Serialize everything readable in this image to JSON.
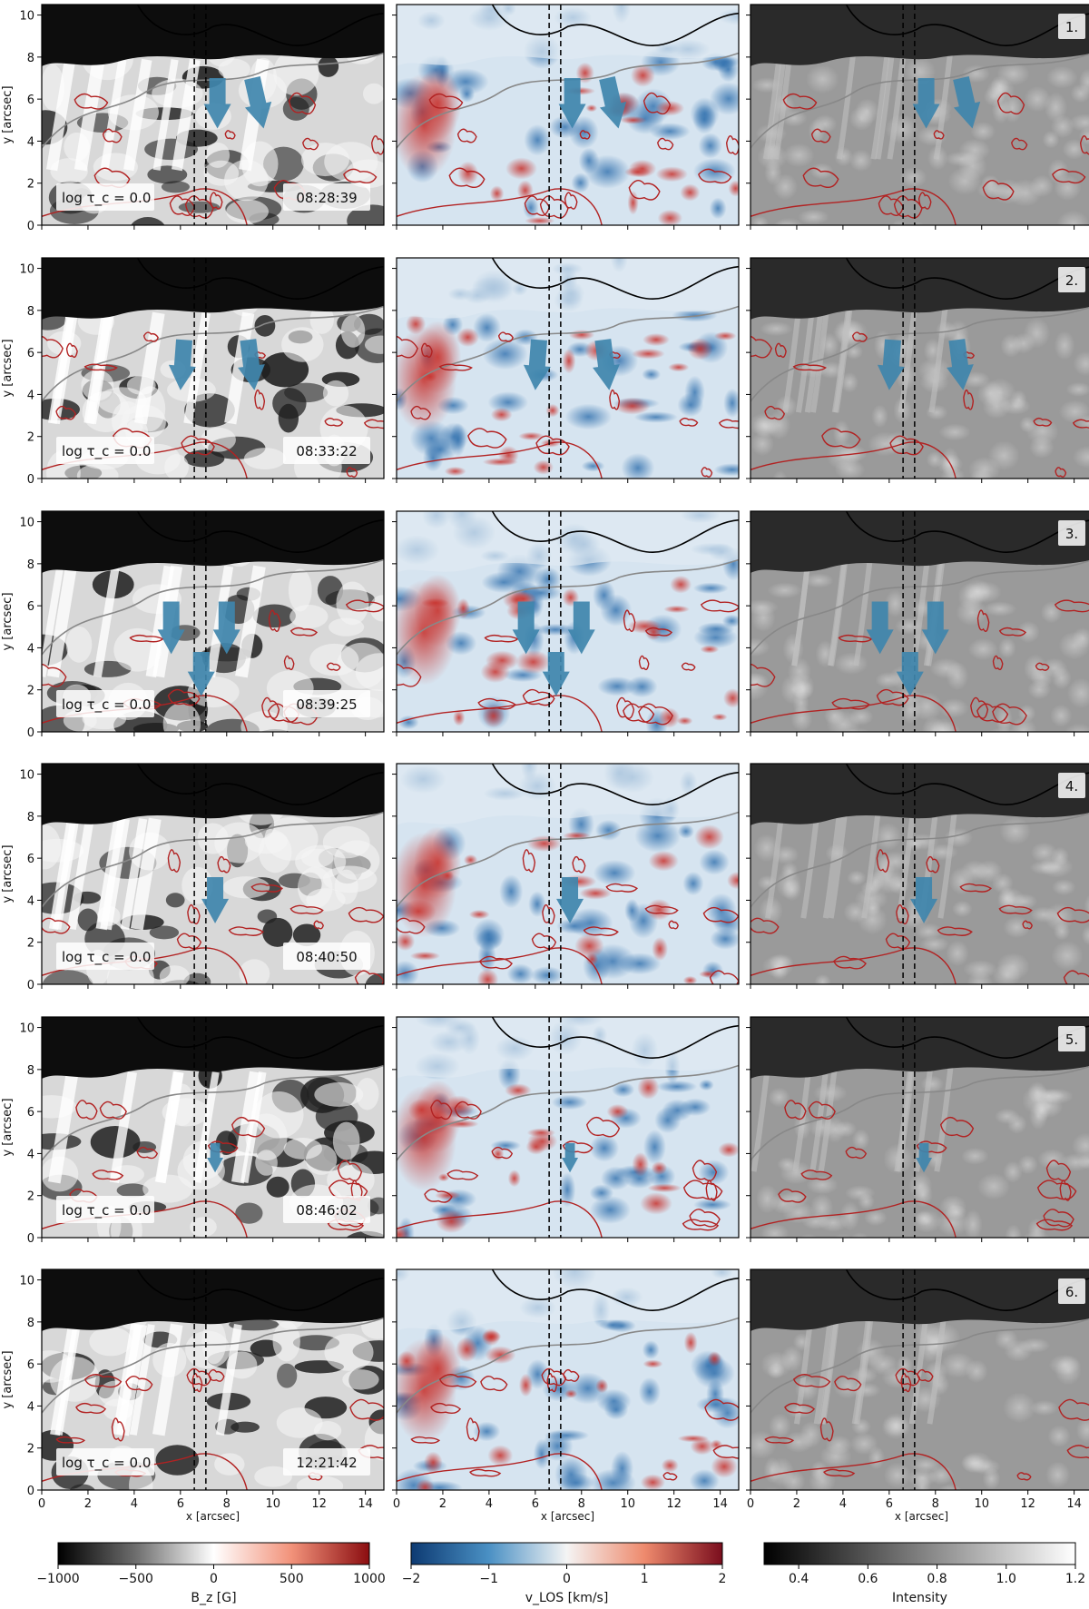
{
  "figure": {
    "rows": [
      {
        "index": "1.",
        "time": "08:28:39",
        "arrows": [
          {
            "x": 7.6,
            "y0": 7.0,
            "y1": 4.6,
            "w": 1.0
          },
          {
            "x": 9.6,
            "y0": 7.0,
            "y1": 4.6,
            "w": 1.0,
            "tilt": -0.9
          }
        ]
      },
      {
        "index": "2.",
        "time": "08:33:22",
        "arrows": [
          {
            "x": 6.0,
            "y0": 6.6,
            "y1": 4.2,
            "w": 1.0,
            "tilt": 0.3
          },
          {
            "x": 9.2,
            "y0": 6.6,
            "y1": 4.2,
            "w": 1.0,
            "tilt": -0.5
          }
        ]
      },
      {
        "index": "3.",
        "time": "08:39:25",
        "arrows": [
          {
            "x": 5.6,
            "y0": 6.2,
            "y1": 3.7,
            "w": 1.0
          },
          {
            "x": 8.0,
            "y0": 6.2,
            "y1": 3.7,
            "w": 1.0
          },
          {
            "x": 6.9,
            "y0": 3.8,
            "y1": 1.7,
            "w": 1.0
          }
        ]
      },
      {
        "index": "4.",
        "time": "08:40:50",
        "arrows": [
          {
            "x": 7.5,
            "y0": 5.1,
            "y1": 2.9,
            "w": 1.0
          }
        ]
      },
      {
        "index": "5.",
        "time": "08:46:02",
        "arrows": [
          {
            "x": 7.5,
            "y0": 4.5,
            "y1": 3.1,
            "w": 0.6
          }
        ]
      },
      {
        "index": "6.",
        "time": "12:21:42",
        "arrows": []
      }
    ],
    "height_label": "log τ_c = 0.0",
    "y_axis_label": "y [arcsec]",
    "x_axis_label": "x [arcsec]",
    "dashed_lines_x": [
      6.6,
      7.1
    ],
    "x_ticks": [
      "0",
      "2",
      "4",
      "6",
      "8",
      "10",
      "12",
      "14"
    ],
    "y_ticks": [
      "0",
      "2",
      "4",
      "6",
      "8",
      "10"
    ],
    "colorbars": [
      {
        "label": "B_z [G]",
        "ticks": [
          "−1000",
          "−500",
          "0",
          "500",
          "1000"
        ],
        "range": [
          -1000,
          1000
        ]
      },
      {
        "label": "v_LOS [km/s]",
        "ticks": [
          "−2",
          "−1",
          "0",
          "1",
          "2"
        ],
        "range": [
          -2,
          2
        ]
      },
      {
        "label": "Intensity",
        "ticks": [
          "0.4",
          "0.6",
          "0.8",
          "1.0",
          "1.2"
        ],
        "range": [
          0.3,
          1.2
        ]
      }
    ]
  },
  "colors": {
    "arrow": "#3f86ad",
    "contour_red": "#b22222",
    "contour_black": "#000000",
    "contour_gray": "#888888"
  }
}
